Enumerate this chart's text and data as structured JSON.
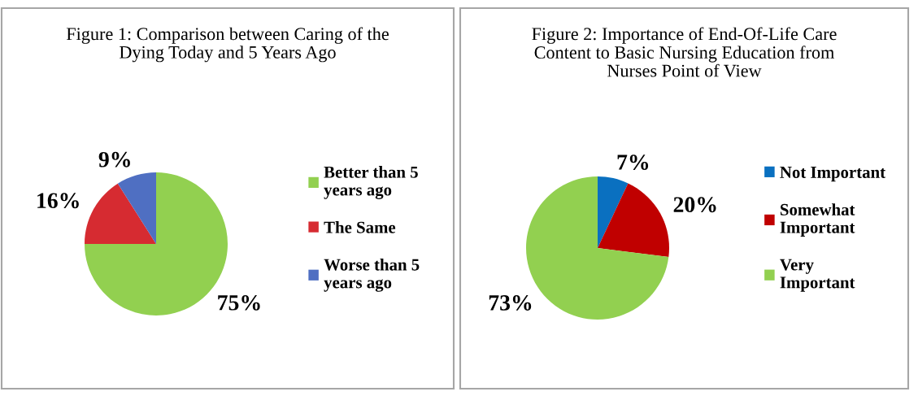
{
  "chart_data": [
    {
      "type": "pie",
      "title": "Figure 1: Comparison between Caring of the Dying Today and 5 Years Ago",
      "categories": [
        "Better than 5 years ago",
        "The Same",
        "Worse than 5 years ago"
      ],
      "values": [
        75,
        16,
        9
      ],
      "colors": [
        "#92d050",
        "#d62b31",
        "#4f6fc2"
      ],
      "value_labels": [
        "75%",
        "16%",
        "9%"
      ],
      "legend": "right"
    },
    {
      "type": "pie",
      "title": "Figure 2: Importance of End-Of-Life Care Content to Basic Nursing Education from Nurses Point of View",
      "categories": [
        "Not Important",
        "Somewhat Important",
        "Very Important"
      ],
      "values": [
        7,
        20,
        73
      ],
      "colors": [
        "#0a70c0",
        "#c00000",
        "#92d050"
      ],
      "value_labels": [
        "7%",
        "20%",
        "73%"
      ],
      "legend": "right"
    }
  ]
}
